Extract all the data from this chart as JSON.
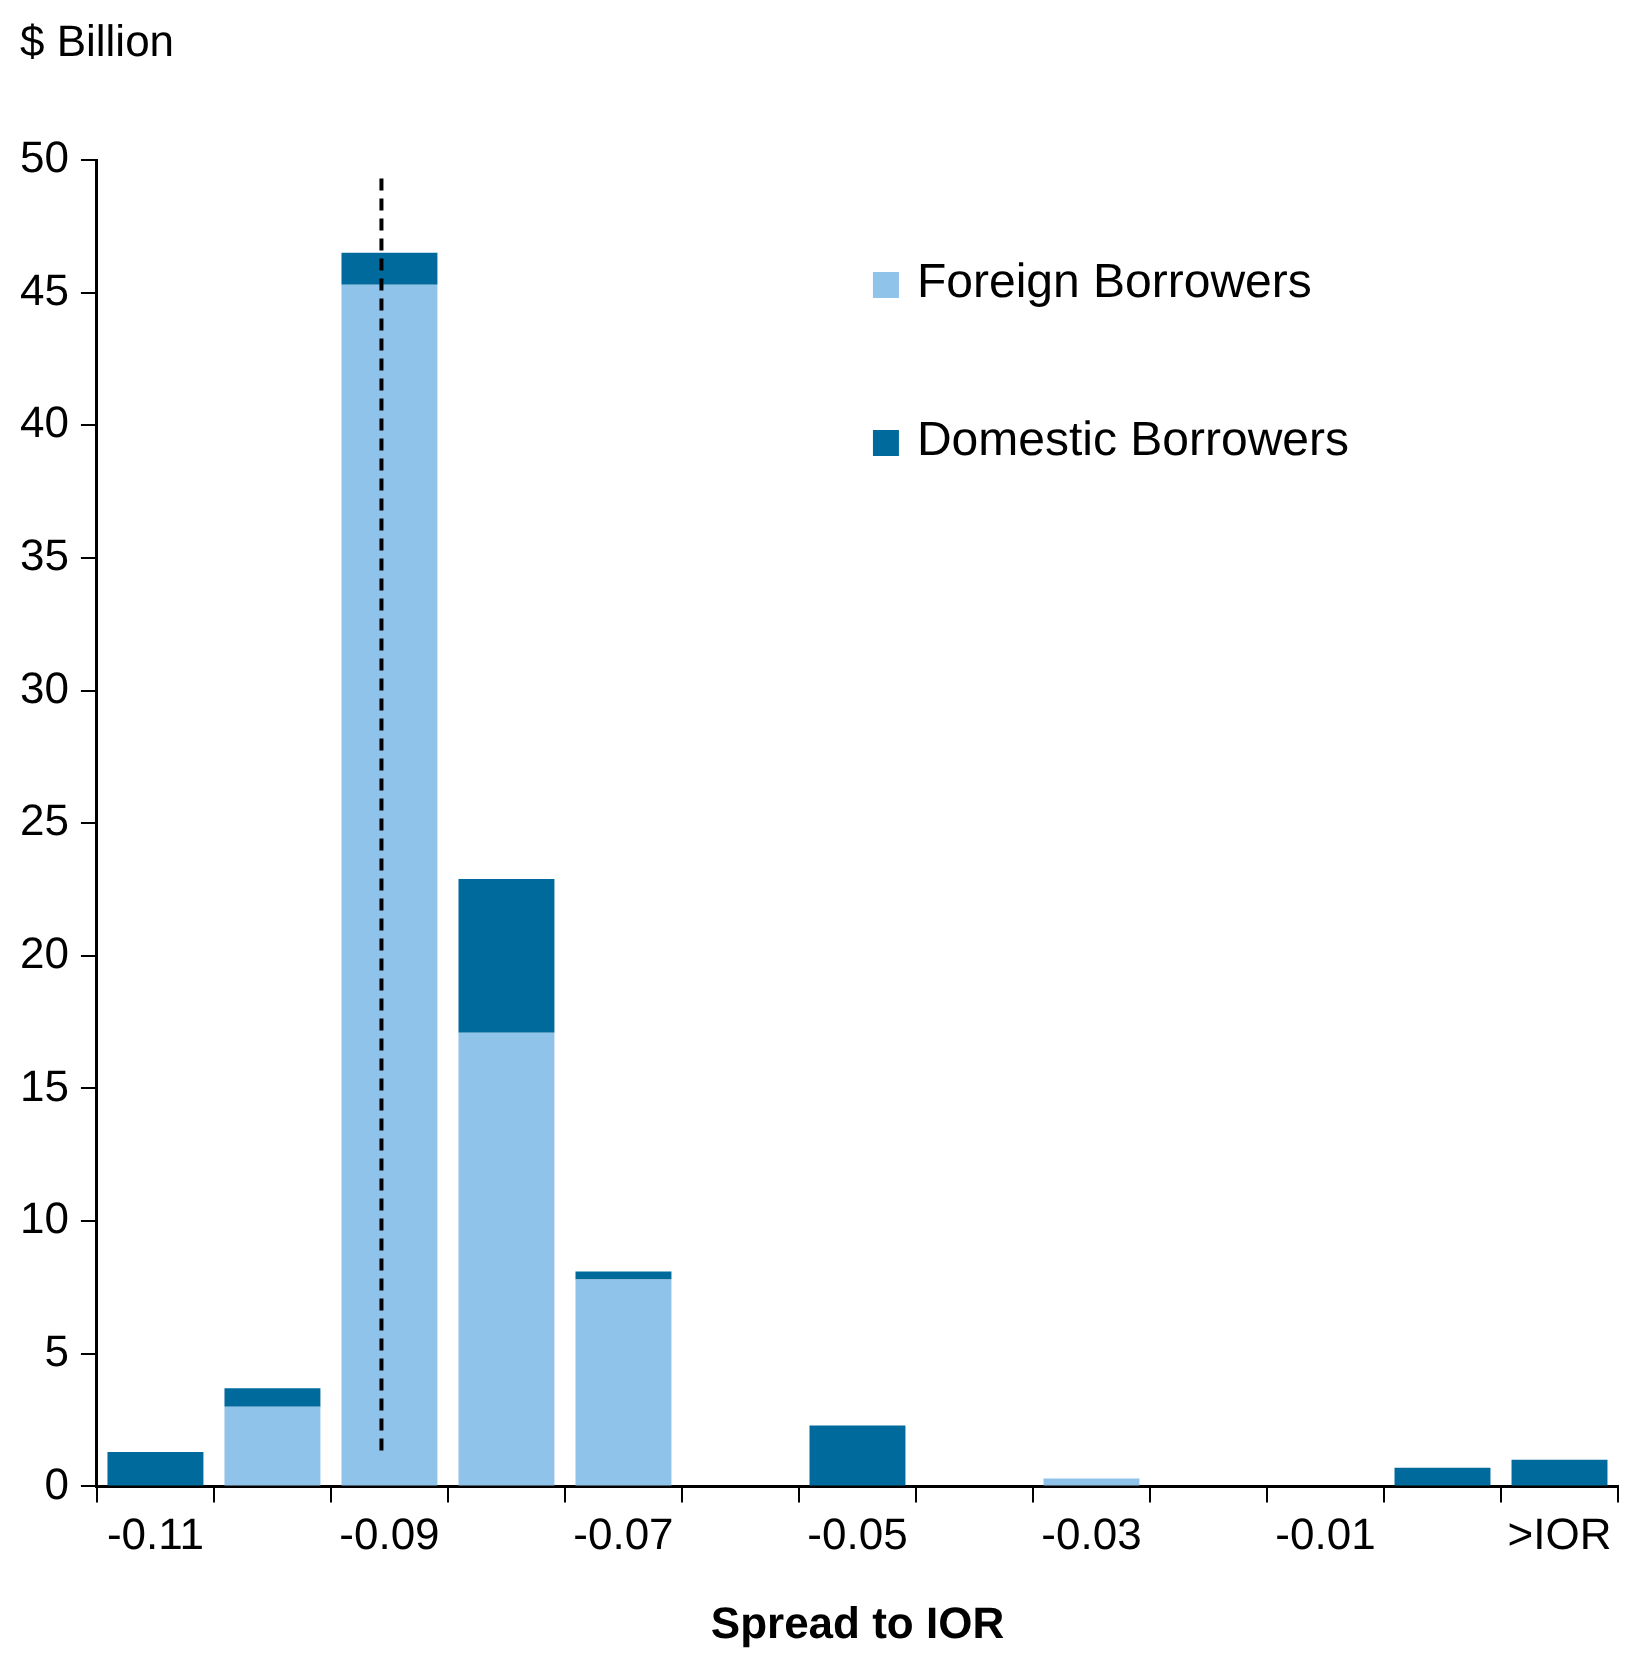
{
  "chart_data": {
    "type": "bar",
    "stacked": true,
    "ylabel": "$ Billion",
    "xlabel": "Spread to IOR",
    "categories": [
      "-0.11",
      null,
      "-0.09",
      null,
      "-0.07",
      null,
      "-0.05",
      null,
      "-0.03",
      null,
      "-0.01",
      null,
      ">IOR"
    ],
    "series": [
      {
        "name": "Foreign Borrowers",
        "color": "#8fc3ea",
        "values": [
          0,
          3.0,
          45.3,
          17.1,
          7.8,
          0,
          0,
          0,
          0.3,
          0,
          0,
          0,
          0
        ]
      },
      {
        "name": "Domestic Borrowers",
        "color": "#006a9c",
        "values": [
          1.3,
          0.7,
          1.2,
          5.8,
          0.3,
          0,
          2.3,
          0,
          0,
          0,
          0,
          0.7,
          1.0
        ]
      }
    ],
    "ylim": [
      0,
      50
    ],
    "yticks": [
      0,
      5,
      10,
      15,
      20,
      25,
      30,
      35,
      40,
      45,
      50
    ],
    "ref_lines": [
      {
        "axis": "x",
        "value": "-0.09",
        "color": "#000000",
        "line_style": "dashed"
      }
    ],
    "legend": "top right",
    "grid": false
  }
}
